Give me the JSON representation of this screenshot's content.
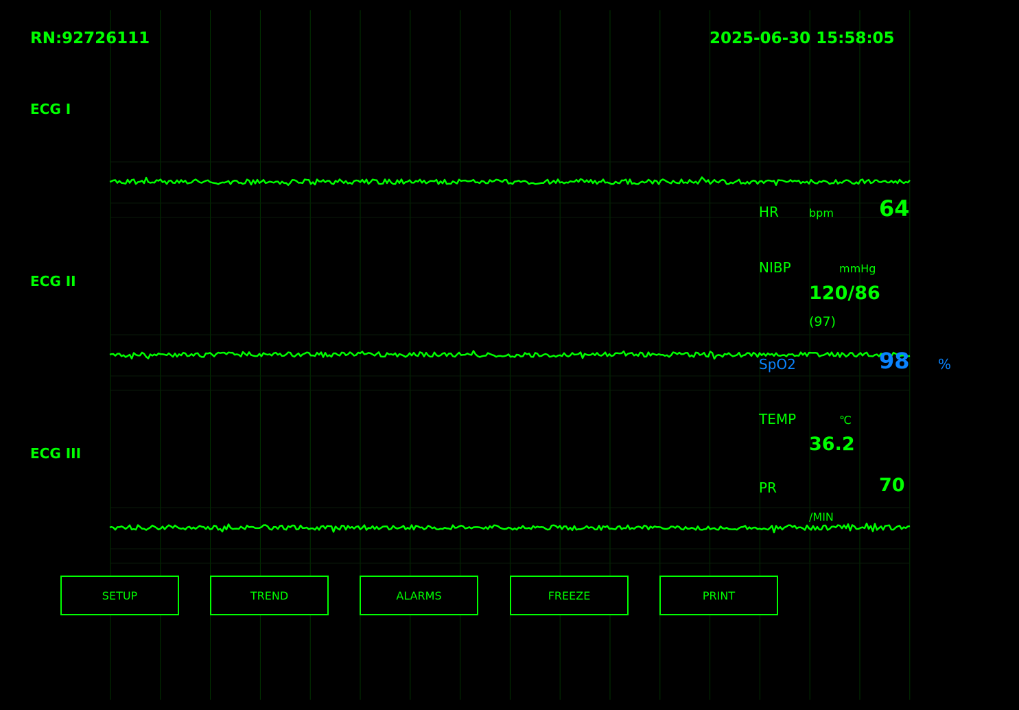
{
  "header": {
    "record_number": "RN:92726111",
    "datetime": "2025-06-30 15:58:05"
  },
  "leads": [
    {
      "label": "ECG I"
    },
    {
      "label": "ECG II"
    },
    {
      "label": "ECG III"
    }
  ],
  "vitals": {
    "hr": {
      "label": "HR",
      "unit": "bpm",
      "value": "64"
    },
    "nibp": {
      "label": "NIBP",
      "unit": "mmHg",
      "value": "120/86",
      "mean": "(97)"
    },
    "spo2": {
      "label": "SpO2",
      "value": "98",
      "unit": "%"
    },
    "temp": {
      "label": "TEMP",
      "unit": "℃",
      "value": "36.2"
    },
    "pr": {
      "label": "PR",
      "value": "70",
      "unit": "/MIN"
    }
  },
  "buttons": {
    "setup": "SETUP",
    "trend": "TREND",
    "alarms": "ALARMS",
    "freeze": "FREEZE",
    "print": "PRINT"
  },
  "colors": {
    "trace": "#00ff00",
    "spo2": "#0a84ff",
    "grid": "#003300",
    "background": "#000000"
  }
}
